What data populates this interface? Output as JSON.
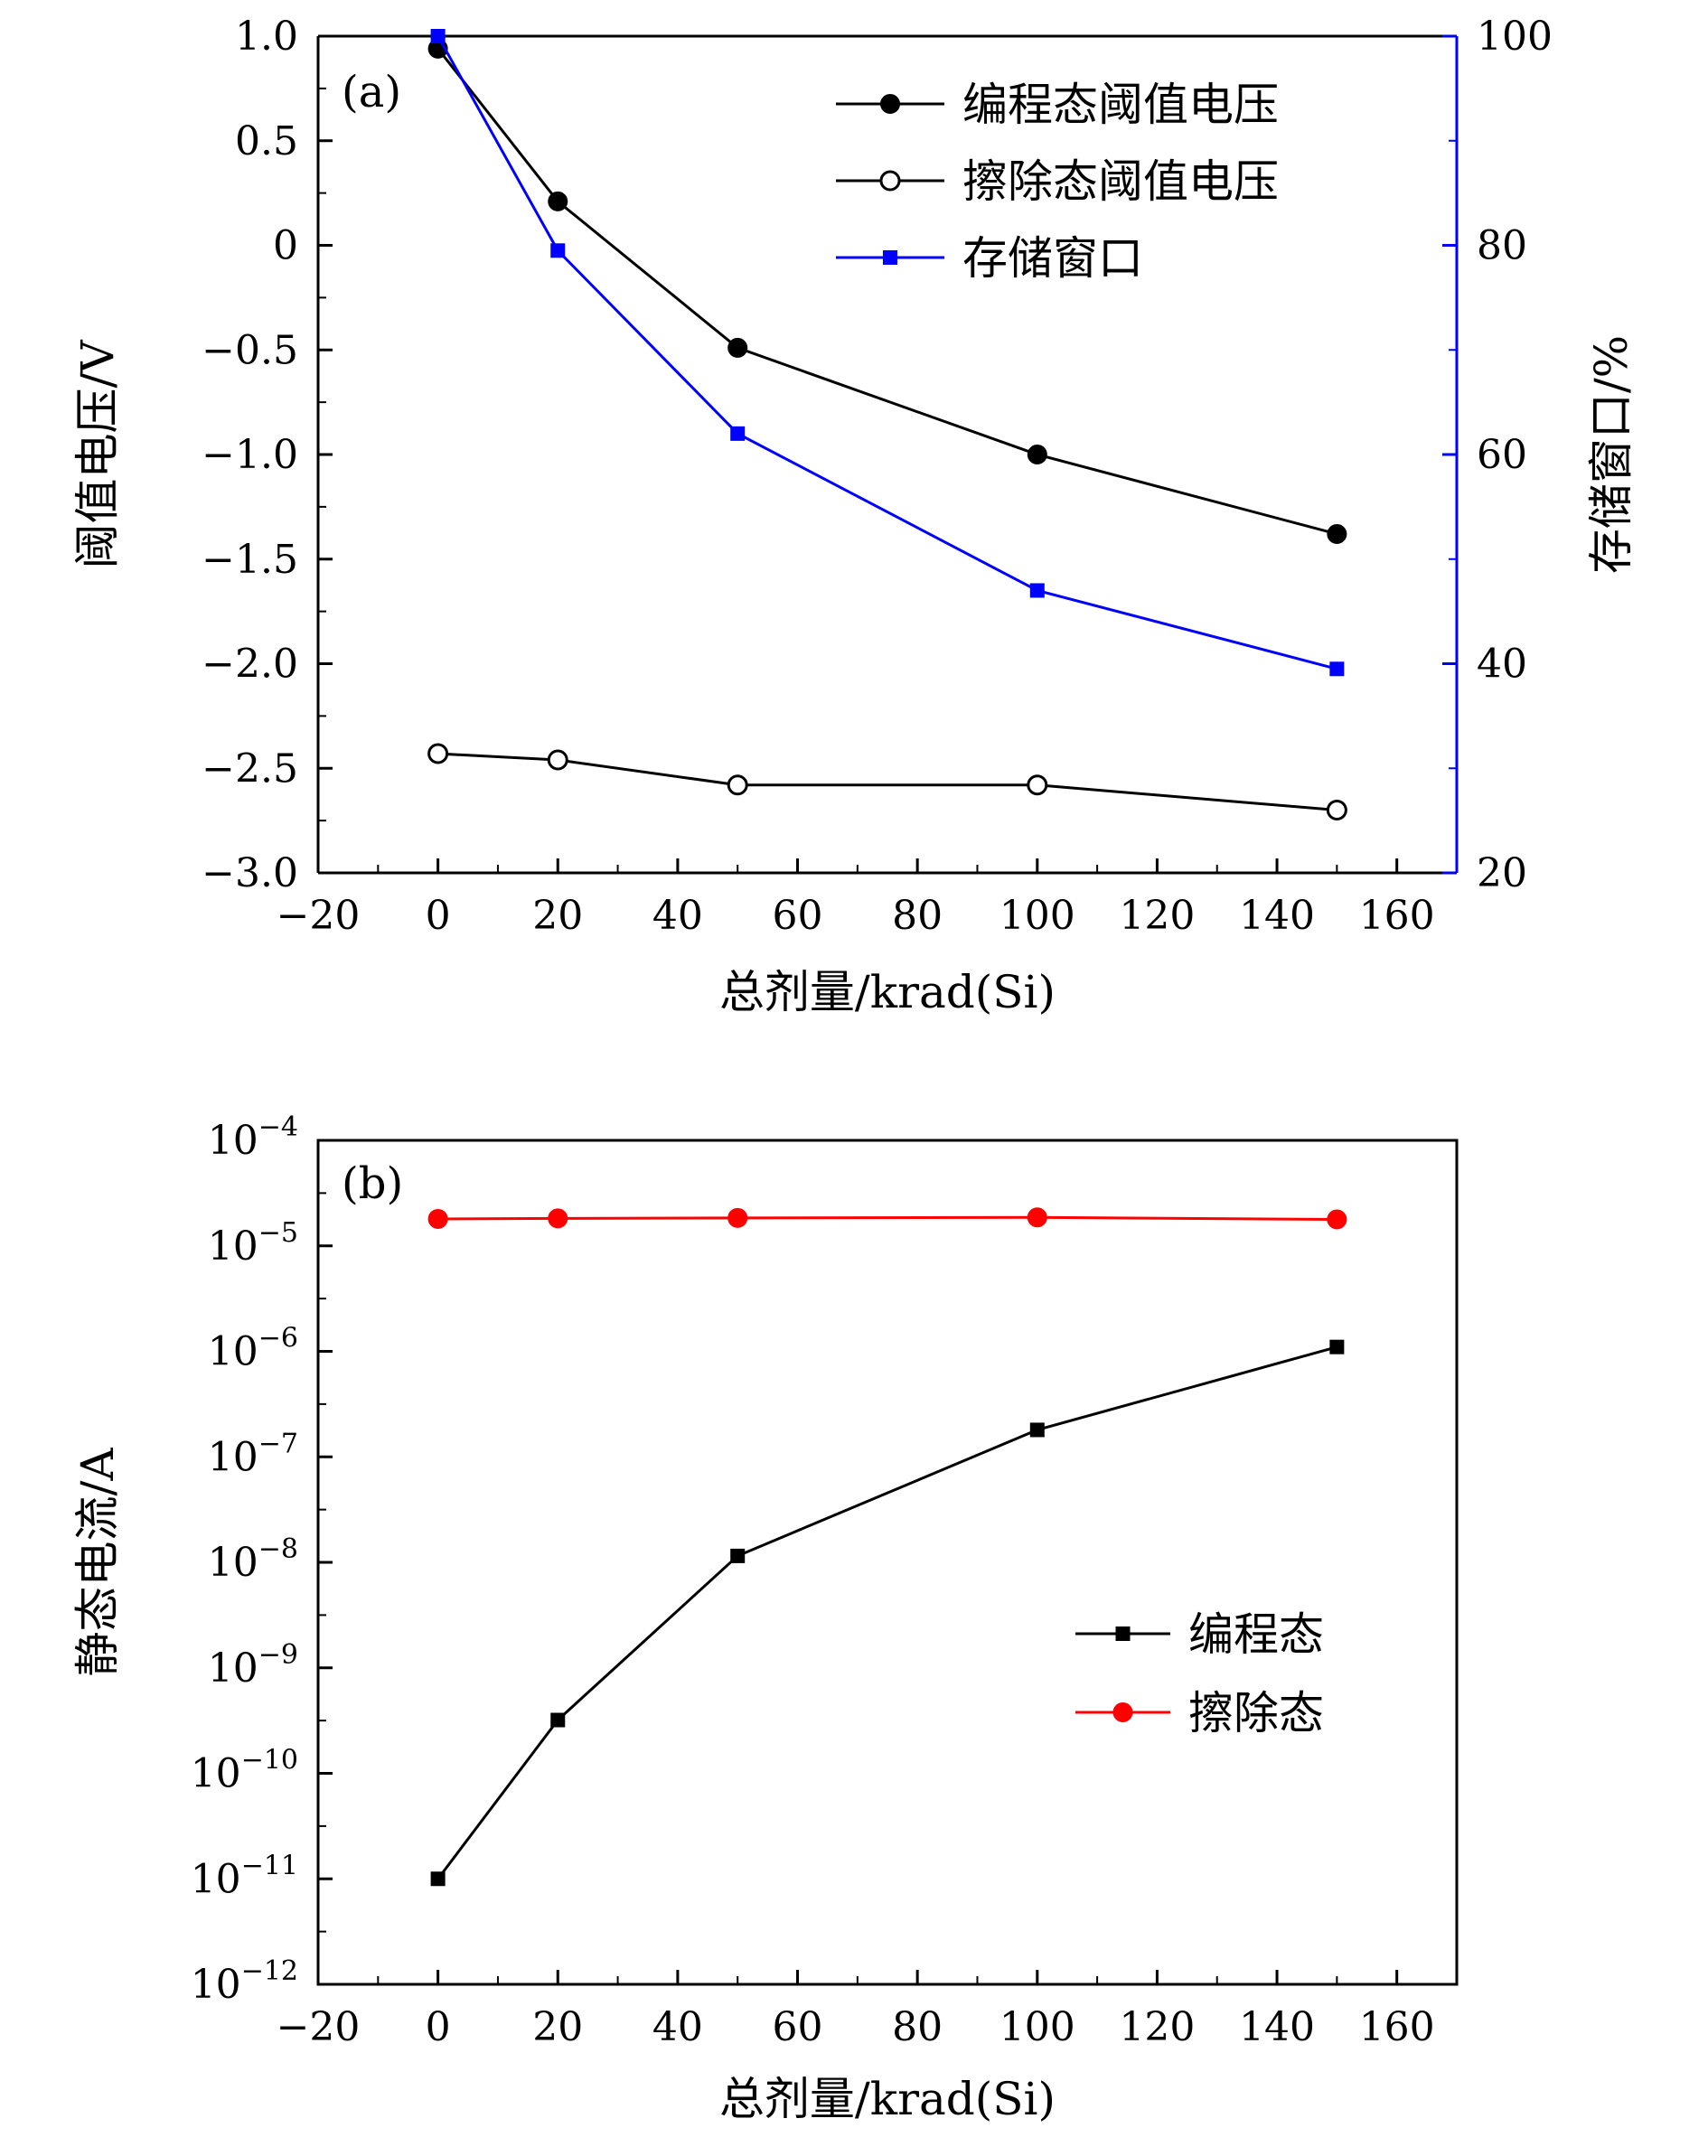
{
  "chart_data": [
    {
      "panel_label": "(a)",
      "type": "line",
      "xlabel": "总剂量/krad(Si)",
      "xlim": [
        -20,
        170
      ],
      "x_ticks": [
        -20,
        0,
        20,
        40,
        60,
        80,
        100,
        120,
        140,
        160
      ],
      "x_tick_labels": [
        "−20",
        "0",
        "20",
        "40",
        "60",
        "80",
        "100",
        "120",
        "140",
        "160"
      ],
      "ylabel": "阈值电压/V",
      "ylim": [
        -3.0,
        1.0
      ],
      "y_ticks": [
        1.0,
        0.5,
        0,
        -0.5,
        -1.0,
        -1.5,
        -2.0,
        -2.5,
        -3.0
      ],
      "y_tick_labels": [
        "1.0",
        "0.5",
        "0",
        "−0.5",
        "−1.0",
        "−1.5",
        "−2.0",
        "−2.5",
        "−3.0"
      ],
      "y2label": "存储窗口/%",
      "y2lim": [
        20,
        100
      ],
      "y2_ticks": [
        100,
        80,
        60,
        40,
        20
      ],
      "y2_tick_labels": [
        "100",
        "80",
        "60",
        "40",
        "20"
      ],
      "y2_color": "#0000ff",
      "legend_position": "top-right",
      "x": [
        0,
        20,
        50,
        100,
        150
      ],
      "series": [
        {
          "name": "编程态阈值电压",
          "axis": "left",
          "marker": "filled-circle",
          "color": "#000000",
          "values": [
            0.94,
            0.21,
            -0.49,
            -1.0,
            -1.38
          ]
        },
        {
          "name": "擦除态阈值电压",
          "axis": "left",
          "marker": "open-circle",
          "color": "#000000",
          "values": [
            -2.43,
            -2.46,
            -2.58,
            -2.58,
            -2.7
          ]
        },
        {
          "name": "存储窗口",
          "axis": "right",
          "marker": "filled-square",
          "color": "#0000ff",
          "values": [
            100,
            79.5,
            62,
            47,
            39.5
          ]
        }
      ]
    },
    {
      "panel_label": "(b)",
      "type": "line",
      "yscale": "log",
      "xlabel": "总剂量/krad(Si)",
      "xlim": [
        -20,
        170
      ],
      "x_ticks": [
        -20,
        0,
        20,
        40,
        60,
        80,
        100,
        120,
        140,
        160
      ],
      "x_tick_labels": [
        "−20",
        "0",
        "20",
        "40",
        "60",
        "80",
        "100",
        "120",
        "140",
        "160"
      ],
      "ylabel": "静态电流/A",
      "ylim": [
        1e-12,
        0.0001
      ],
      "y_tick_exponents": [
        -4,
        -5,
        -6,
        -7,
        -8,
        -9,
        -10,
        -11,
        -12
      ],
      "y_tick_base": "10",
      "legend_position": "center-right",
      "x": [
        0,
        20,
        50,
        100,
        150
      ],
      "series": [
        {
          "name": "编程态",
          "marker": "filled-square",
          "color": "#000000",
          "values": [
            1e-11,
            3.2e-10,
            1.15e-08,
            1.8e-07,
            1.1e-06
          ]
        },
        {
          "name": "擦除态",
          "marker": "filled-circle",
          "color": "#ff0000",
          "values": [
            1.8e-05,
            1.82e-05,
            1.84e-05,
            1.86e-05,
            1.78e-05
          ]
        }
      ]
    }
  ]
}
